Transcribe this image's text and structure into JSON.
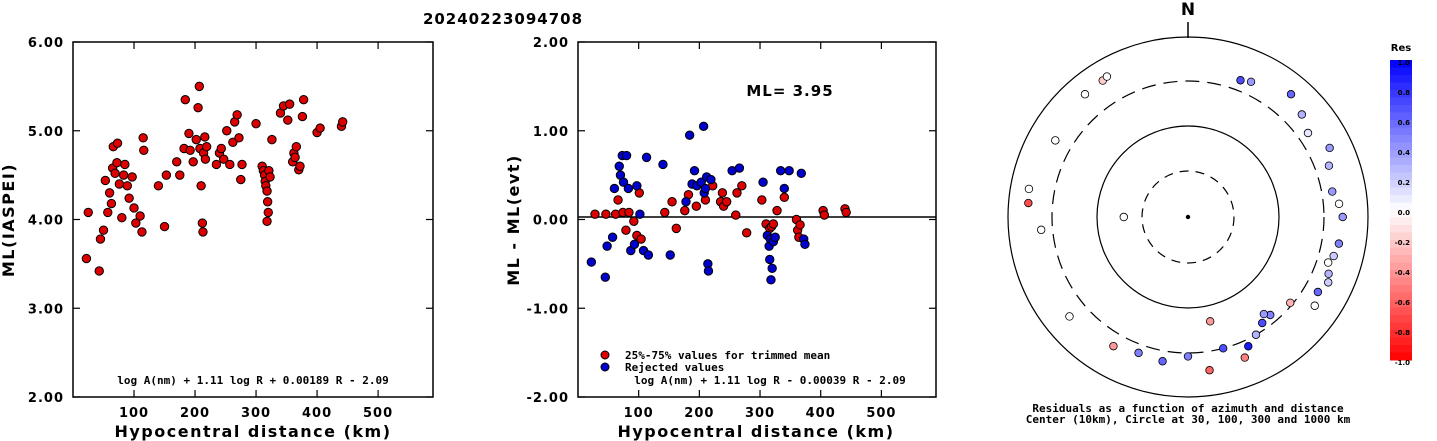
{
  "figure_title": "20240223094708",
  "chart_data": [
    {
      "type": "scatter",
      "name": "ml-vs-distance",
      "xlabel": "Hypocentral distance (km)",
      "ylabel": "ML(IASPEI)",
      "xlim": [
        0,
        590
      ],
      "ylim": [
        2.0,
        6.0
      ],
      "xticks": [
        "100",
        "200",
        "300",
        "400",
        "500"
      ],
      "yticks": [
        "2.00",
        "3.00",
        "4.00",
        "5.00",
        "6.00"
      ],
      "formula": "log A(nm) + 1.11 log R + 0.00189 R - 2.09",
      "marker_color": "#dd0000",
      "points": [
        [
          22,
          3.56
        ],
        [
          25,
          4.08
        ],
        [
          43,
          3.42
        ],
        [
          45,
          3.78
        ],
        [
          50,
          3.88
        ],
        [
          53,
          4.44
        ],
        [
          57,
          4.08
        ],
        [
          60,
          4.3
        ],
        [
          63,
          4.18
        ],
        [
          65,
          4.58
        ],
        [
          66,
          4.82
        ],
        [
          69,
          4.52
        ],
        [
          72,
          4.64
        ],
        [
          73,
          4.86
        ],
        [
          76,
          4.4
        ],
        [
          80,
          4.02
        ],
        [
          83,
          4.5
        ],
        [
          85,
          4.62
        ],
        [
          89,
          4.38
        ],
        [
          92,
          4.24
        ],
        [
          97,
          4.48
        ],
        [
          100,
          4.13
        ],
        [
          103,
          3.96
        ],
        [
          110,
          4.04
        ],
        [
          113,
          3.86
        ],
        [
          115,
          4.92
        ],
        [
          116,
          4.78
        ],
        [
          140,
          4.38
        ],
        [
          150,
          3.92
        ],
        [
          153,
          4.5
        ],
        [
          170,
          4.65
        ],
        [
          175,
          4.5
        ],
        [
          182,
          4.8
        ],
        [
          184,
          5.35
        ],
        [
          190,
          4.97
        ],
        [
          192,
          4.78
        ],
        [
          197,
          4.65
        ],
        [
          202,
          4.9
        ],
        [
          205,
          5.26
        ],
        [
          207,
          5.5
        ],
        [
          208,
          4.8
        ],
        [
          210,
          4.38
        ],
        [
          212,
          3.96
        ],
        [
          213,
          3.86
        ],
        [
          214,
          4.75
        ],
        [
          216,
          4.93
        ],
        [
          217,
          4.68
        ],
        [
          219,
          4.82
        ],
        [
          235,
          4.62
        ],
        [
          240,
          4.75
        ],
        [
          243,
          4.8
        ],
        [
          247,
          4.68
        ],
        [
          252,
          5.0
        ],
        [
          257,
          4.62
        ],
        [
          262,
          4.87
        ],
        [
          265,
          5.1
        ],
        [
          269,
          5.18
        ],
        [
          272,
          4.92
        ],
        [
          275,
          4.45
        ],
        [
          277,
          4.62
        ],
        [
          300,
          5.08
        ],
        [
          310,
          4.6
        ],
        [
          312,
          4.55
        ],
        [
          314,
          4.5
        ],
        [
          315,
          4.43
        ],
        [
          316,
          4.38
        ],
        [
          318,
          4.32
        ],
        [
          320,
          4.08
        ],
        [
          318,
          3.98
        ],
        [
          319,
          4.2
        ],
        [
          321,
          4.55
        ],
        [
          323,
          4.48
        ],
        [
          326,
          4.9
        ],
        [
          340,
          5.2
        ],
        [
          345,
          5.28
        ],
        [
          352,
          5.12
        ],
        [
          355,
          5.3
        ],
        [
          360,
          4.65
        ],
        [
          362,
          4.75
        ],
        [
          364,
          4.7
        ],
        [
          366,
          4.82
        ],
        [
          370,
          4.56
        ],
        [
          372,
          4.6
        ],
        [
          376,
          5.16
        ],
        [
          378,
          5.35
        ],
        [
          400,
          4.98
        ],
        [
          405,
          5.03
        ],
        [
          440,
          5.05
        ],
        [
          442,
          5.1
        ]
      ]
    },
    {
      "type": "scatter",
      "name": "residual-vs-distance",
      "xlabel": "Hypocentral distance (km)",
      "ylabel": "ML - ML(evt)",
      "xlim": [
        0,
        590
      ],
      "ylim": [
        -2.0,
        2.0
      ],
      "xticks": [
        "100",
        "200",
        "300",
        "400",
        "500"
      ],
      "yticks": [
        "-2.00",
        "-1.00",
        "0.00",
        "1.00",
        "2.00"
      ],
      "ml_label": "ML= 3.95",
      "formula": "log A(nm) + 1.11 log R - 0.00039 R - 2.09",
      "legend": [
        {
          "label": "25%-75% values for trimmed mean",
          "color": "#dd0000"
        },
        {
          "label": "Rejected values",
          "color": "#0000cc"
        }
      ],
      "series": [
        {
          "name": "25%-75% values for trimmed mean",
          "color": "#dd0000",
          "points": [
            [
              28,
              0.06
            ],
            [
              46,
              0.06
            ],
            [
              62,
              0.06
            ],
            [
              66,
              0.22
            ],
            [
              74,
              0.08
            ],
            [
              79,
              -0.12
            ],
            [
              84,
              0.08
            ],
            [
              92,
              -0.02
            ],
            [
              97,
              -0.18
            ],
            [
              101,
              0.3
            ],
            [
              104,
              -0.22
            ],
            [
              143,
              0.08
            ],
            [
              155,
              0.2
            ],
            [
              162,
              -0.1
            ],
            [
              176,
              0.1
            ],
            [
              182,
              0.28
            ],
            [
              195,
              0.15
            ],
            [
              210,
              0.22
            ],
            [
              222,
              0.38
            ],
            [
              235,
              0.2
            ],
            [
              238,
              0.3
            ],
            [
              240,
              0.15
            ],
            [
              245,
              0.2
            ],
            [
              260,
              0.05
            ],
            [
              262,
              0.3
            ],
            [
              270,
              0.38
            ],
            [
              278,
              -0.15
            ],
            [
              303,
              0.22
            ],
            [
              310,
              -0.05
            ],
            [
              316,
              -0.1
            ],
            [
              319,
              -0.08
            ],
            [
              322,
              -0.05
            ],
            [
              328,
              0.1
            ],
            [
              340,
              0.25
            ],
            [
              360,
              0.0
            ],
            [
              362,
              -0.12
            ],
            [
              364,
              -0.2
            ],
            [
              366,
              -0.06
            ],
            [
              404,
              0.1
            ],
            [
              406,
              0.05
            ],
            [
              440,
              0.12
            ],
            [
              442,
              0.08
            ]
          ]
        },
        {
          "name": "Rejected values",
          "color": "#0000cc",
          "points": [
            [
              22,
              -0.48
            ],
            [
              45,
              -0.65
            ],
            [
              48,
              -0.3
            ],
            [
              57,
              -0.2
            ],
            [
              60,
              0.35
            ],
            [
              68,
              0.6
            ],
            [
              70,
              0.5
            ],
            [
              73,
              0.72
            ],
            [
              75,
              0.42
            ],
            [
              80,
              0.72
            ],
            [
              83,
              0.35
            ],
            [
              87,
              -0.35
            ],
            [
              93,
              -0.28
            ],
            [
              97,
              0.38
            ],
            [
              102,
              0.06
            ],
            [
              108,
              -0.35
            ],
            [
              113,
              0.7
            ],
            [
              116,
              -0.4
            ],
            [
              140,
              0.62
            ],
            [
              152,
              -0.4
            ],
            [
              178,
              0.2
            ],
            [
              184,
              0.95
            ],
            [
              188,
              0.4
            ],
            [
              192,
              0.55
            ],
            [
              196,
              0.38
            ],
            [
              203,
              0.42
            ],
            [
              207,
              1.05
            ],
            [
              208,
              0.3
            ],
            [
              210,
              0.35
            ],
            [
              212,
              0.48
            ],
            [
              214,
              -0.5
            ],
            [
              215,
              -0.58
            ],
            [
              219,
              0.45
            ],
            [
              254,
              0.55
            ],
            [
              266,
              0.58
            ],
            [
              305,
              0.42
            ],
            [
              312,
              -0.18
            ],
            [
              315,
              -0.3
            ],
            [
              316,
              -0.45
            ],
            [
              317,
              -0.22
            ],
            [
              318,
              -0.68
            ],
            [
              320,
              -0.55
            ],
            [
              322,
              -0.25
            ],
            [
              325,
              -0.2
            ],
            [
              334,
              0.55
            ],
            [
              340,
              0.35
            ],
            [
              348,
              0.55
            ],
            [
              368,
              0.52
            ],
            [
              372,
              -0.22
            ],
            [
              374,
              -0.28
            ]
          ]
        }
      ]
    },
    {
      "type": "polar-scatter",
      "name": "azimuth-distance-residuals",
      "north_label": "N",
      "caption_line1": "Residuals as a function of azimuth and distance",
      "caption_line2": "Center (10km), Circle at 30, 100, 300 and 1000 km",
      "circle_distances_km": [
        30,
        100,
        300,
        1000
      ],
      "points": [
        {
          "az": 21,
          "dist": 420,
          "res": 0.7
        },
        {
          "az": 25,
          "dist": 450,
          "res": 0.4
        },
        {
          "az": 40,
          "dist": 600,
          "res": 0.6
        },
        {
          "az": 48,
          "dist": 500,
          "res": 0.3
        },
        {
          "az": 55,
          "dist": 420,
          "res": 0.1
        },
        {
          "az": 64,
          "dist": 560,
          "res": 0.4
        },
        {
          "az": 70,
          "dist": 460,
          "res": 0.3
        },
        {
          "az": 80,
          "dist": 420,
          "res": 0.4
        },
        {
          "az": 85,
          "dist": 480,
          "res": 0.0
        },
        {
          "az": 90,
          "dist": 520,
          "res": 0.4
        },
        {
          "az": 100,
          "dist": 500,
          "res": 0.5
        },
        {
          "az": 105,
          "dist": 470,
          "res": 0.2
        },
        {
          "az": 108,
          "dist": 430,
          "res": 0.0
        },
        {
          "az": 112,
          "dist": 480,
          "res": 0.3
        },
        {
          "az": 115,
          "dist": 520,
          "res": 0.2
        },
        {
          "az": 120,
          "dist": 460,
          "res": 0.6
        },
        {
          "az": 125,
          "dist": 520,
          "res": 0.0
        },
        {
          "az": 130,
          "dist": 300,
          "res": -0.3
        },
        {
          "az": 140,
          "dist": 260,
          "res": 0.5
        },
        {
          "az": 142,
          "dist": 230,
          "res": 0.4
        },
        {
          "az": 145,
          "dist": 270,
          "res": 0.7
        },
        {
          "az": 150,
          "dist": 320,
          "res": 0.3
        },
        {
          "az": 155,
          "dist": 380,
          "res": 0.9
        },
        {
          "az": 158,
          "dist": 480,
          "res": -0.5
        },
        {
          "az": 165,
          "dist": 320,
          "res": 0.7
        },
        {
          "az": 172,
          "dist": 520,
          "res": -0.6
        },
        {
          "az": 180,
          "dist": 350,
          "res": 0.5
        },
        {
          "az": 168,
          "dist": 150,
          "res": -0.4
        },
        {
          "az": 190,
          "dist": 420,
          "res": 0.6
        },
        {
          "az": 200,
          "dist": 400,
          "res": 0.5
        },
        {
          "az": 210,
          "dist": 450,
          "res": -0.4
        },
        {
          "az": 230,
          "dist": 520,
          "res": 0.0
        },
        {
          "az": 265,
          "dist": 430,
          "res": 0.0
        },
        {
          "az": 275,
          "dist": 600,
          "res": -0.7
        },
        {
          "az": 280,
          "dist": 620,
          "res": 0.0
        },
        {
          "az": 300,
          "dist": 500,
          "res": 0.0
        },
        {
          "az": 320,
          "dist": 600,
          "res": 0.0
        },
        {
          "az": 328,
          "dist": 610,
          "res": -0.2
        },
        {
          "az": 330,
          "dist": 630,
          "res": 0.0
        },
        {
          "az": 270,
          "dist": 50,
          "res": 0.0
        },
        {
          "az": 0,
          "dist": 0,
          "res": 0.0
        }
      ]
    }
  ],
  "colorbar": {
    "title": "Res",
    "ticks": [
      "1.0",
      "0.8",
      "0.6",
      "0.4",
      "0.2",
      "0.0",
      "-0.2",
      "-0.4",
      "-0.6",
      "-0.8",
      "-1.0"
    ]
  }
}
